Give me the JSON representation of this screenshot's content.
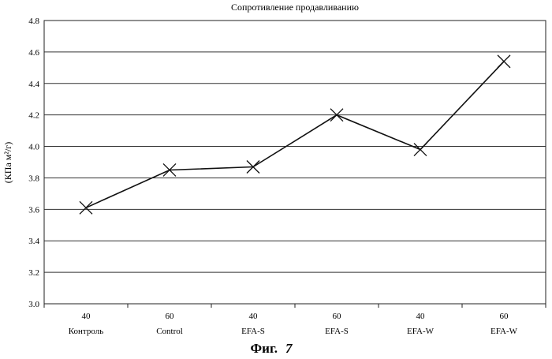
{
  "chart_data": {
    "type": "line",
    "title": "Сопротивление продавливанию",
    "ylabel": "(КПа м²/г)",
    "xlabel": "",
    "ylim": [
      3.0,
      4.8
    ],
    "yticks": [
      "3.0",
      "3.2",
      "3.4",
      "3.6",
      "3.8",
      "4.0",
      "4.2",
      "4.4",
      "4.6",
      "4.8"
    ],
    "categories": [
      {
        "line1": "40",
        "line2": "Контроль"
      },
      {
        "line1": "60",
        "line2": "Control"
      },
      {
        "line1": "40",
        "line2": "EFA-S"
      },
      {
        "line1": "60",
        "line2": "EFA-S"
      },
      {
        "line1": "40",
        "line2": "EFA-W"
      },
      {
        "line1": "60",
        "line2": "EFA-W"
      }
    ],
    "series": [
      {
        "values": [
          3.61,
          3.85,
          3.87,
          4.2,
          3.98,
          4.54
        ],
        "marker": "x"
      }
    ],
    "grid": true,
    "legend": "none"
  },
  "caption": {
    "prefix": "Фиг.",
    "number": "7"
  }
}
